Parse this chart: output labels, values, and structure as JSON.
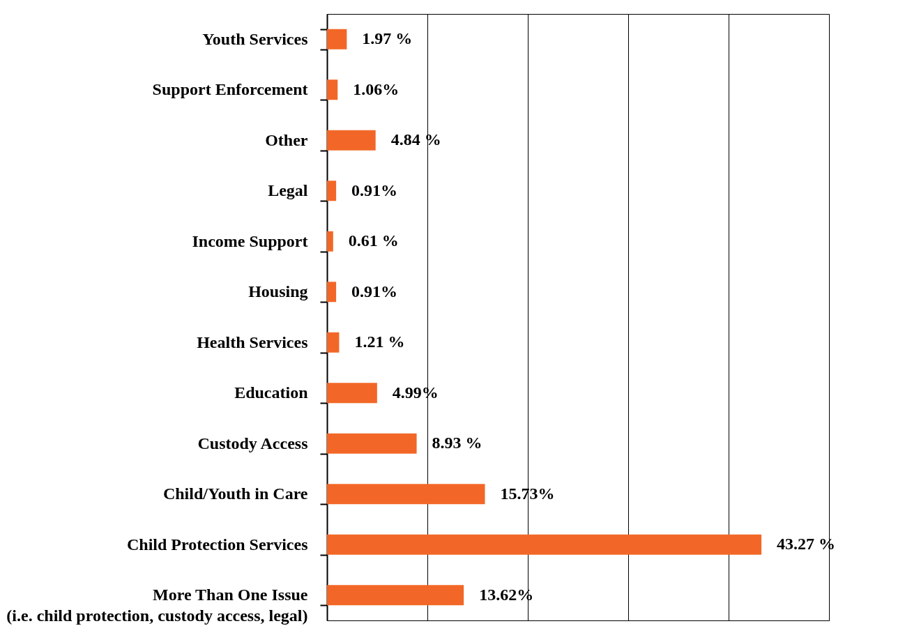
{
  "chart_data": {
    "type": "bar",
    "orientation": "horizontal",
    "categories": [
      "Youth Services",
      "Support Enforcement",
      "Other",
      "Legal",
      "Income Support",
      "Housing",
      "Health Services",
      "Education",
      "Custody Access",
      "Child/Youth in Care",
      "Child Protection Services",
      "More Than One Issue\n(i.e. child protection, custody access, legal)"
    ],
    "values": [
      1.97,
      1.06,
      4.84,
      0.91,
      0.61,
      0.91,
      1.21,
      4.99,
      8.93,
      15.73,
      43.27,
      13.62
    ],
    "value_labels": [
      "1.97 %",
      "1.06%",
      "4.84 %",
      "0.91%",
      "0.61 %",
      "0.91%",
      "1.21 %",
      "4.99%",
      "8.93 %",
      "15.73%",
      "43.27 %",
      "13.62%"
    ],
    "color": "#f26727",
    "xlim": [
      0,
      50
    ],
    "xticks": [
      {
        "value": 0,
        "label": null
      },
      {
        "value": 10,
        "label": null
      },
      {
        "value": 20,
        "label": null
      },
      {
        "value": 30,
        "label": null
      },
      {
        "value": 40,
        "label": null
      },
      {
        "value": 50,
        "label": null
      }
    ],
    "grid": "x",
    "tick_labels": "y"
  }
}
